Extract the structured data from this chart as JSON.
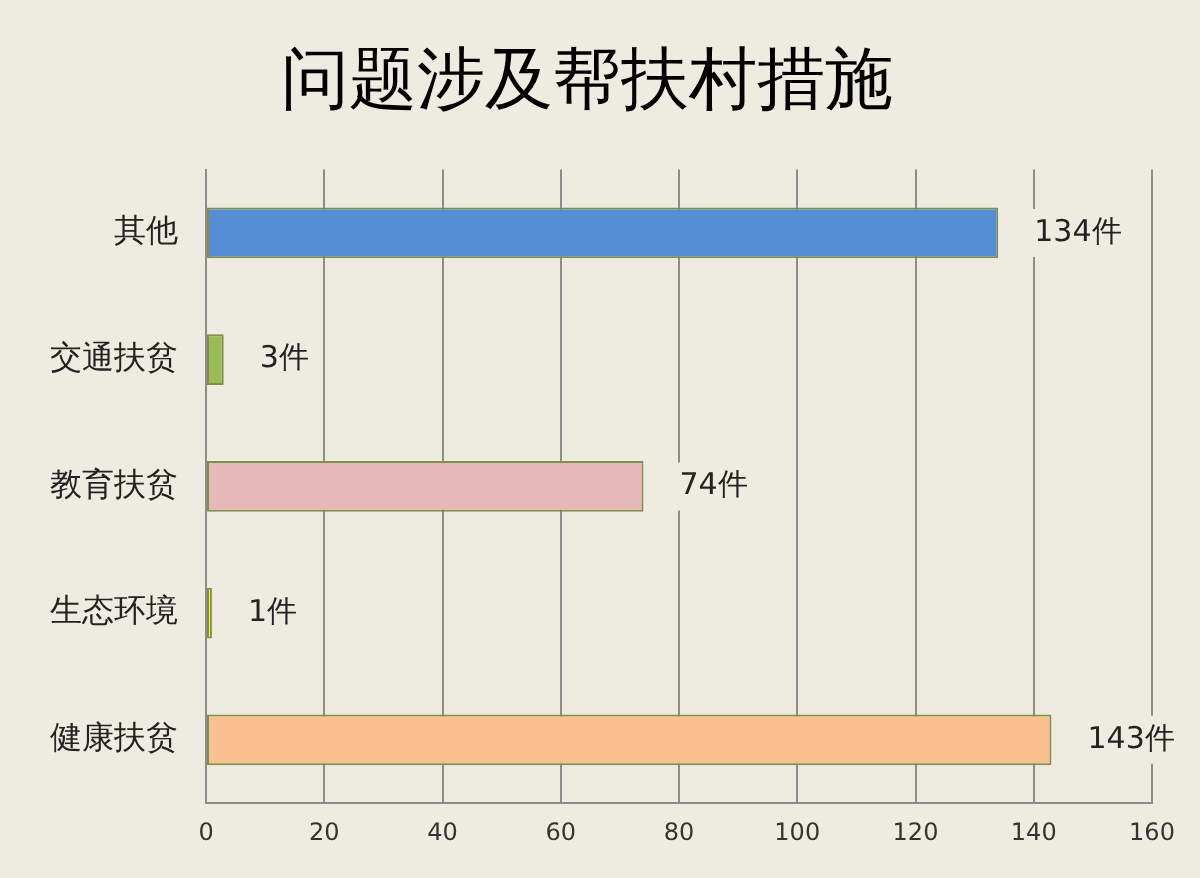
{
  "chart_data": {
    "type": "bar",
    "orientation": "horizontal",
    "title": "问题涉及帮扶村措施",
    "categories": [
      "其他",
      "交通扶贫",
      "教育扶贫",
      "生态环境",
      "健康扶贫"
    ],
    "values": [
      134,
      3,
      74,
      1,
      143
    ],
    "colors": [
      "#558ed5",
      "#9bbb59",
      "#e6b9b8",
      "#ffff00",
      "#fac090"
    ],
    "value_labels": [
      "134件",
      "3件",
      "74件",
      "1件",
      "143件"
    ],
    "xlim": [
      0,
      160
    ],
    "xticks": [
      0,
      20,
      40,
      60,
      80,
      100,
      120,
      140,
      160
    ],
    "grid": "x",
    "legend": false
  }
}
